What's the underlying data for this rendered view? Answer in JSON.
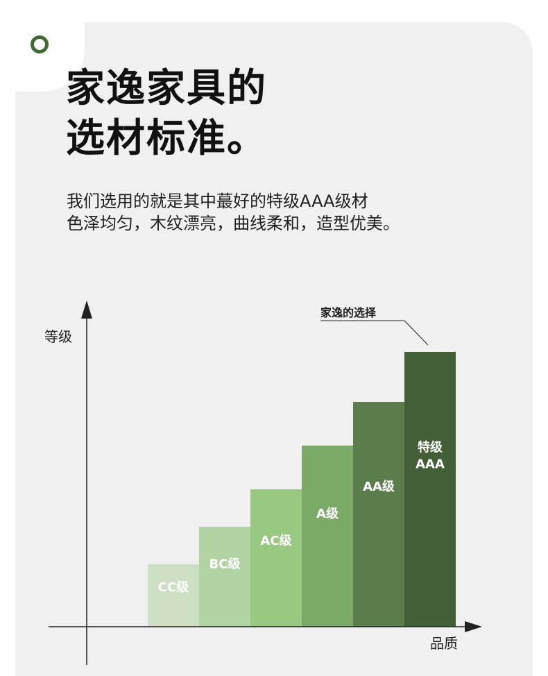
{
  "header": {
    "title_line1": "家逸家具的",
    "title_line2": "选材标准。",
    "subtitle_line1": "我们选用的就是其中蕞好的特级AAA级材",
    "subtitle_line2": "色泽均匀，木纹漂亮，曲线柔和，造型优美。"
  },
  "colors": {
    "accent": "#3f6b32",
    "background": "#f0f0f0",
    "bar_colors": [
      "#cde0c3",
      "#b2d3a3",
      "#99c882",
      "#7aaa65",
      "#5b7d4b",
      "#435f38"
    ]
  },
  "chart_data": {
    "type": "bar",
    "title": "",
    "xlabel": "品质",
    "ylabel": "等级",
    "categories": [
      "CC级",
      "BC级",
      "AC级",
      "A级",
      "AA级",
      "特级AAA"
    ],
    "category_lines": [
      [
        "CC级"
      ],
      [
        "BC级"
      ],
      [
        "AC级"
      ],
      [
        "A级"
      ],
      [
        "AA级"
      ],
      [
        "特级",
        "AAA"
      ]
    ],
    "values": [
      1.0,
      1.6,
      2.2,
      2.9,
      3.6,
      4.4
    ],
    "ylim": [
      0,
      5
    ],
    "grid": false,
    "legend": "none",
    "callout": {
      "text": "家逸的选择",
      "target_index": 5
    }
  }
}
